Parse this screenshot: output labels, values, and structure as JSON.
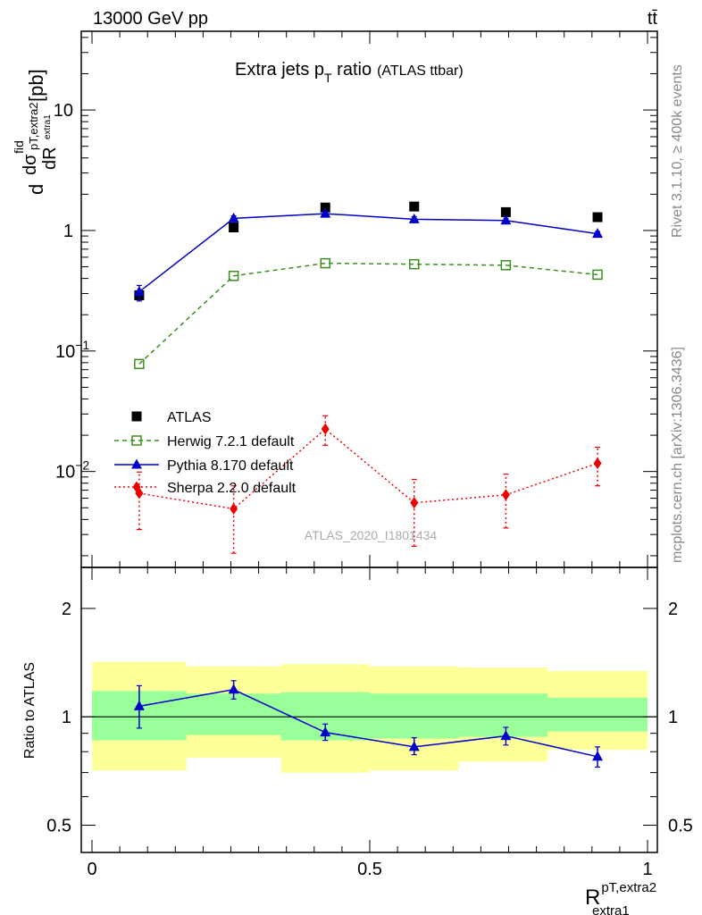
{
  "header": {
    "energy": "13000 GeV pp",
    "process": "tt̄"
  },
  "side_text": {
    "rivet": "Rivet 3.1.10, ≥ 400k events",
    "mcplots": "mcplots.cern.ch [arXiv:1306.3436]"
  },
  "watermark": "ATLAS_2020_I1801434",
  "chart_data": [
    {
      "type": "scatter",
      "title": "Extra jets p",
      "title_sub": "T",
      "title_tail": " ratio",
      "title_note": "(ATLAS ttbar)",
      "ylabel": "dσ/dR [pb]",
      "yscale": "log",
      "ylim": [
        0.0016,
        45
      ],
      "xlim": [
        -0.04,
        1.02
      ],
      "yticks": [
        {
          "value": 10,
          "label": "10"
        },
        {
          "value": 1,
          "label": "1"
        },
        {
          "value": 0.1,
          "label": "10",
          "exp": "−1"
        },
        {
          "value": 0.01,
          "label": "10",
          "exp": "−2"
        }
      ],
      "x": [
        0.085,
        0.255,
        0.42,
        0.58,
        0.745,
        0.91
      ],
      "series": [
        {
          "name": "ATLAS",
          "key": "atlas",
          "color": "#000000",
          "marker": "square-filled",
          "values": [
            0.29,
            1.06,
            1.55,
            1.58,
            1.42,
            1.29
          ]
        },
        {
          "name": "Herwig 7.2.1 default",
          "key": "herwig",
          "color": "#3a8f1e",
          "marker": "square-open",
          "dash": "5,4",
          "values": [
            0.078,
            0.42,
            0.535,
            0.525,
            0.515,
            0.43
          ]
        },
        {
          "name": "Pythia 8.170 default",
          "key": "pythia",
          "color": "#0000cc",
          "marker": "triangle",
          "values": [
            0.31,
            1.26,
            1.38,
            1.24,
            1.21,
            0.94
          ],
          "err_lo": [
            0.26,
            1.2,
            1.33,
            1.19,
            1.16,
            0.9
          ],
          "err_hi": [
            0.35,
            1.32,
            1.44,
            1.3,
            1.26,
            0.98
          ]
        },
        {
          "name": "Sherpa 2.2.0 default",
          "key": "sherpa",
          "color": "#ee0000",
          "marker": "diamond",
          "dash": "2,3",
          "values": [
            0.0066,
            0.0049,
            0.0225,
            0.0055,
            0.0064,
            0.0117
          ],
          "err_lo": [
            0.0033,
            0.0021,
            0.0165,
            0.0024,
            0.0034,
            0.0076
          ],
          "err_hi": [
            0.0099,
            0.0076,
            0.029,
            0.0086,
            0.0095,
            0.0159
          ]
        }
      ]
    },
    {
      "type": "line",
      "ylabel": "Ratio to ATLAS",
      "yscale": "log",
      "ylim": [
        0.42,
        2.6
      ],
      "yticks": [
        {
          "value": 2,
          "label": "2"
        },
        {
          "value": 1,
          "label": "1"
        },
        {
          "value": 0.5,
          "label": "0.5"
        }
      ],
      "xticks": [
        {
          "value": 0,
          "label": "0"
        },
        {
          "value": 0.5,
          "label": "0.5"
        },
        {
          "value": 1,
          "label": "1"
        }
      ],
      "xlabel": "R",
      "xlabel_sup": "pT,extra2",
      "xlabel_sub": "extra1",
      "bin_edges": [
        0,
        0.17,
        0.34,
        0.5,
        0.66,
        0.82,
        1.0
      ],
      "band_outer": [
        [
          0.71,
          1.42
        ],
        [
          0.77,
          1.38
        ],
        [
          0.7,
          1.4
        ],
        [
          0.71,
          1.38
        ],
        [
          0.75,
          1.37
        ],
        [
          0.81,
          1.34
        ]
      ],
      "band_inner": [
        [
          0.86,
          1.18
        ],
        [
          0.89,
          1.16
        ],
        [
          0.86,
          1.17
        ],
        [
          0.87,
          1.16
        ],
        [
          0.88,
          1.16
        ],
        [
          0.91,
          1.13
        ]
      ],
      "x": [
        0.085,
        0.255,
        0.42,
        0.58,
        0.745,
        0.91
      ],
      "series": [
        {
          "name": "Pythia 8.170 default",
          "key": "pythia",
          "color": "#0000cc",
          "values": [
            1.07,
            1.19,
            0.905,
            0.825,
            0.885,
            0.775
          ],
          "err_lo": [
            0.93,
            1.12,
            0.86,
            0.785,
            0.835,
            0.725
          ],
          "err_hi": [
            1.22,
            1.26,
            0.955,
            0.875,
            0.935,
            0.825
          ]
        }
      ]
    }
  ]
}
